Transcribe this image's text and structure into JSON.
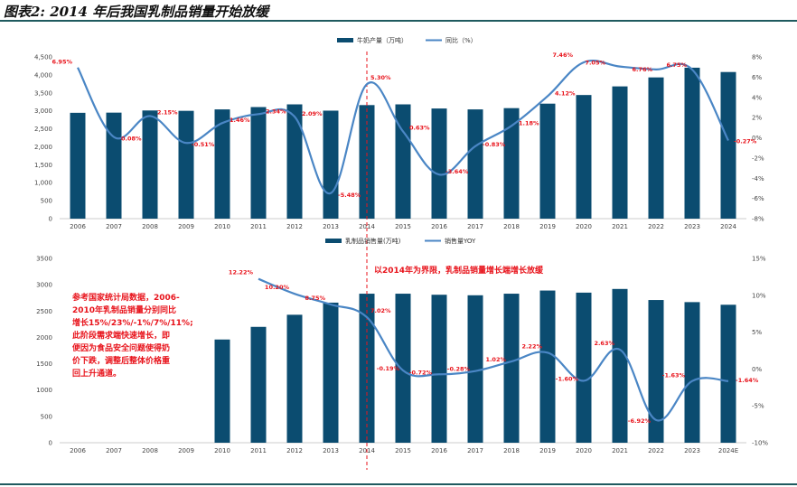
{
  "title": "图表2: 2014 年后我国乳制品销量开始放缓",
  "colors": {
    "bar": "#0b4c70",
    "line": "#4a86c5",
    "label": "#e8131b",
    "divider": "#e8131b"
  },
  "chart_data": [
    {
      "type": "bar",
      "categories": [
        "2006",
        "2007",
        "2008",
        "2009",
        "2010",
        "2011",
        "2012",
        "2013",
        "2014",
        "2015",
        "2016",
        "2017",
        "2018",
        "2019",
        "2020",
        "2021",
        "2022",
        "2023",
        "2024"
      ],
      "series": [
        {
          "name": "牛奶产量（万吨）",
          "type": "bar",
          "axis": "left",
          "values": [
            2945,
            2950,
            3010,
            3000,
            3040,
            3105,
            3180,
            3005,
            3160,
            3180,
            3065,
            3040,
            3075,
            3200,
            3440,
            3680,
            3930,
            4200,
            4080
          ]
        },
        {
          "name": "同比（%）",
          "type": "line",
          "axis": "right",
          "values": [
            6.95,
            0.08,
            2.15,
            -0.51,
            1.46,
            2.34,
            2.09,
            -5.48,
            5.3,
            0.63,
            -3.64,
            -0.83,
            1.18,
            4.12,
            7.46,
            7.05,
            6.76,
            6.75,
            -0.27
          ],
          "labels": [
            "6.95%",
            "0.08%",
            "2.15%",
            "-0.51%",
            "1.46%",
            "2.34%",
            "2.09%",
            "-5.48%",
            "5.30%",
            "0.63%",
            "-3.64%",
            "-0.83%",
            "1.18%",
            "4.12%",
            "7.46%",
            "7.05%",
            "6.76%",
            "6.75%",
            "-0.27%"
          ]
        }
      ],
      "y_left": {
        "min": 0,
        "max": 4500,
        "ticks": [
          "0",
          "500",
          "1,000",
          "1,500",
          "2,000",
          "2,500",
          "3,000",
          "3,500",
          "4,000",
          "4,500"
        ]
      },
      "y_right": {
        "min": -8,
        "max": 8,
        "ticks": [
          "-8%",
          "-6%",
          "-4%",
          "-2%",
          "0%",
          "2%",
          "4%",
          "6%",
          "8%"
        ]
      },
      "divider_at": "2014",
      "legend_position": "top-center"
    },
    {
      "type": "bar",
      "categories": [
        "2006",
        "2007",
        "2008",
        "2009",
        "2010",
        "2011",
        "2012",
        "2013",
        "2014",
        "2015",
        "2016",
        "2017",
        "2018",
        "2019",
        "2020",
        "2021",
        "2022",
        "2023",
        "2024E"
      ],
      "series": [
        {
          "name": "乳制品销售量(万吨)",
          "type": "bar",
          "axis": "left",
          "values": [
            null,
            null,
            null,
            null,
            1960,
            2200,
            2430,
            2660,
            2830,
            2830,
            2810,
            2800,
            2830,
            2890,
            2850,
            2920,
            2710,
            2670,
            2620
          ]
        },
        {
          "name": "销售量YOY",
          "type": "line",
          "axis": "right",
          "values": [
            null,
            null,
            null,
            null,
            null,
            12.22,
            10.2,
            8.75,
            7.02,
            -0.19,
            -0.72,
            -0.28,
            1.02,
            2.22,
            -1.6,
            2.63,
            -6.92,
            -1.63,
            -1.64
          ],
          "labels": [
            null,
            null,
            null,
            null,
            null,
            "12.22%",
            "10.20%",
            "8.75%",
            "7.02%",
            "-0.19%",
            "-0.72%",
            "-0.28%",
            "1.02%",
            "2.22%",
            "-1.60%",
            "2.63%",
            "-6.92%",
            "-1.63%",
            "-1.64%"
          ]
        }
      ],
      "y_left": {
        "min": 0,
        "max": 3500,
        "ticks": [
          "0",
          "500",
          "1000",
          "1500",
          "2000",
          "2500",
          "3000",
          "3500"
        ]
      },
      "y_right": {
        "min": -10,
        "max": 15,
        "ticks": [
          "-10%",
          "-5%",
          "0%",
          "5%",
          "10%",
          "15%"
        ]
      },
      "divider_at": "2014",
      "legend_position": "top-center",
      "annotations": {
        "divider_note": "以2014年为界限，乳制品销量增长端增长放缓",
        "left_note": [
          "参考国家统计局数据，2006-",
          "2010年乳制品销量分别同比",
          "增长15%/23%/-1%/7%/11%;",
          "此阶段需求端快速增长，即",
          "便因为食品安全问题使得奶",
          "价下跌，调整后整体价格重",
          "回上升通道。"
        ]
      }
    }
  ]
}
